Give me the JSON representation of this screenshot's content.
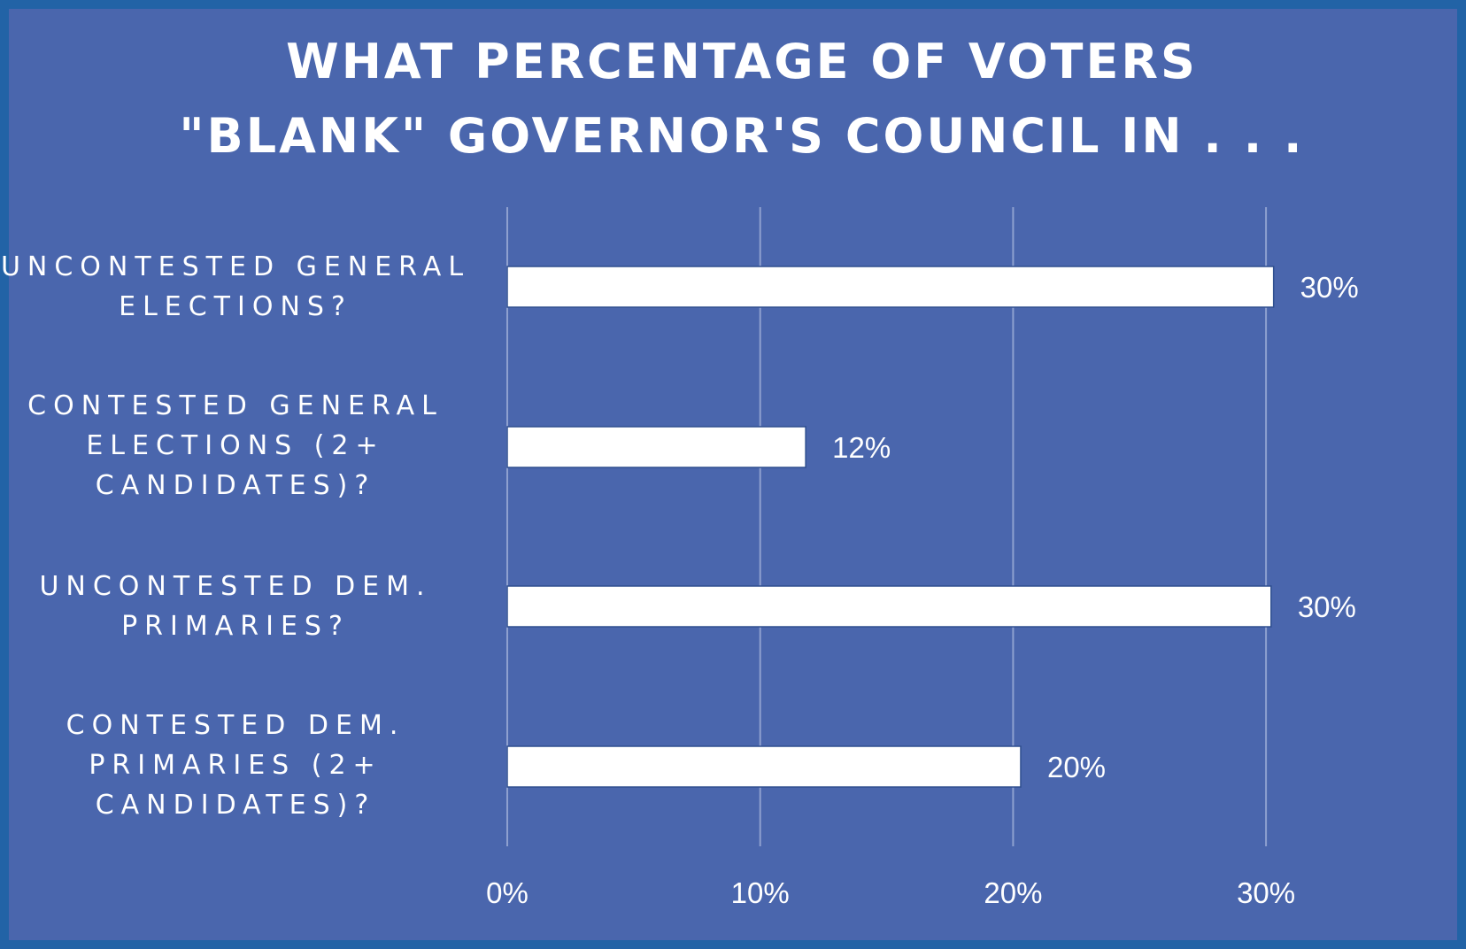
{
  "chart_data": {
    "type": "bar",
    "orientation": "horizontal",
    "title_lines": [
      "WHAT PERCENTAGE OF VOTERS",
      "\"BLANK\" GOVERNOR'S COUNCIL IN . . ."
    ],
    "xlabel": "",
    "ylabel": "",
    "categories": [
      {
        "lines": [
          "UNCONTESTED GENERAL",
          "ELECTIONS?"
        ]
      },
      {
        "lines": [
          "CONTESTED GENERAL",
          "ELECTIONS (2+",
          "CANDIDATES)?"
        ]
      },
      {
        "lines": [
          "UNCONTESTED DEM.",
          "PRIMARIES?"
        ]
      },
      {
        "lines": [
          "CONTESTED DEM.",
          "PRIMARIES (2+",
          "CANDIDATES)?"
        ]
      }
    ],
    "values": [
      30.3,
      11.8,
      30.2,
      20.3
    ],
    "data_labels": [
      "30%",
      "12%",
      "30%",
      "20%"
    ],
    "xlim": [
      0,
      30
    ],
    "x_ticks": [
      {
        "value": 0,
        "label": "0%"
      },
      {
        "value": 10,
        "label": "10%"
      },
      {
        "value": 20,
        "label": "20%"
      },
      {
        "value": 30,
        "label": "30%"
      }
    ],
    "grid": "vertical",
    "legend": "none",
    "colors": {
      "background": "#4a66ad",
      "border": "#2263a6",
      "bar_fill": "#ffffff",
      "bar_stroke": "#2f4f8f",
      "gridline": "#8ea0cf",
      "text": "#ffffff"
    }
  }
}
